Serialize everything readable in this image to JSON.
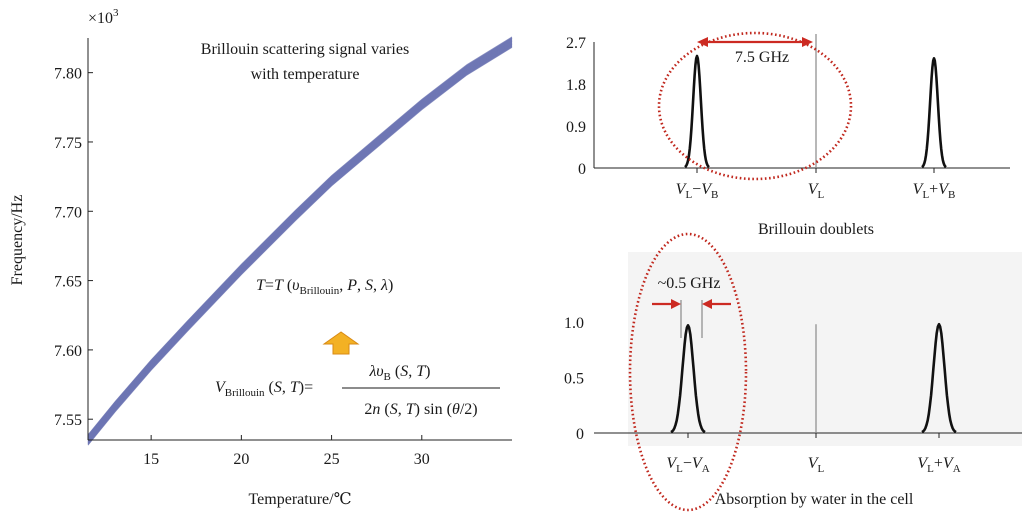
{
  "chart_data": [
    {
      "type": "line",
      "title": "Brillouin scattering signal varies with temperature",
      "title_line1": "Brillouin scattering signal varies",
      "title_line2": "with temperature",
      "xlabel": "Temperature/℃",
      "ylabel": "Frequency/Hz",
      "y_multiplier": "×10",
      "y_multiplier_exp": "3",
      "xlim": [
        11.5,
        35
      ],
      "ylim": [
        7.535,
        7.825
      ],
      "x_ticks": [
        15,
        20,
        25,
        30
      ],
      "y_ticks": [
        7.55,
        7.6,
        7.65,
        7.7,
        7.75,
        7.8
      ],
      "y_tick_labels": [
        "7.55",
        "7.60",
        "7.65",
        "7.70",
        "7.75",
        "7.80"
      ],
      "series": [
        {
          "x": [
            11.5,
            13,
            15,
            17,
            20,
            23,
            25,
            27,
            30,
            32.5,
            35
          ],
          "values": [
            7.535,
            7.559,
            7.589,
            7.617,
            7.658,
            7.697,
            7.722,
            7.744,
            7.777,
            7.802,
            7.822
          ]
        }
      ],
      "band_color": "#6d75b3",
      "annotations": {
        "formula_T": "T=T (υBrillouin, P, S, λ)",
        "formula_V": "VBrillouin (S, T)=λυB (S, T) / 2n (S, T) sin (θ/2)"
      },
      "arrow_color": "#f3b124"
    },
    {
      "type": "line",
      "title": "Brillouin doublets",
      "ylim": [
        0,
        2.7
      ],
      "y_ticks": [
        0,
        0.9,
        1.8,
        2.7
      ],
      "y_tick_labels": [
        "0",
        "0.9",
        "1.8",
        "2.7"
      ],
      "x_tick_labels": [
        "VL−VB",
        "VL",
        "VL+VB"
      ],
      "peaks": [
        {
          "label": "VL−VB",
          "height": 2.4
        },
        {
          "label": "VL",
          "height": 2.7
        },
        {
          "label": "VL+VB",
          "height": 2.35
        }
      ],
      "annotation": "7.5 GHz",
      "highlight_color": "#c0281e"
    },
    {
      "type": "line",
      "title": "Absorption by water in the cell",
      "ylim": [
        0,
        1.0
      ],
      "y_ticks": [
        0,
        0.5,
        1.0
      ],
      "y_tick_labels": [
        "0",
        "0.5",
        "1.0"
      ],
      "x_tick_labels": [
        "VL−VA",
        "VL",
        "VL+VA"
      ],
      "peaks": [
        {
          "label": "VL−VA",
          "height": 0.97
        },
        {
          "label": "VL",
          "height": 0.98
        },
        {
          "label": "VL+VA",
          "height": 0.98
        }
      ],
      "annotation": "~0.5 GHz",
      "highlight_color": "#c0281e"
    }
  ]
}
